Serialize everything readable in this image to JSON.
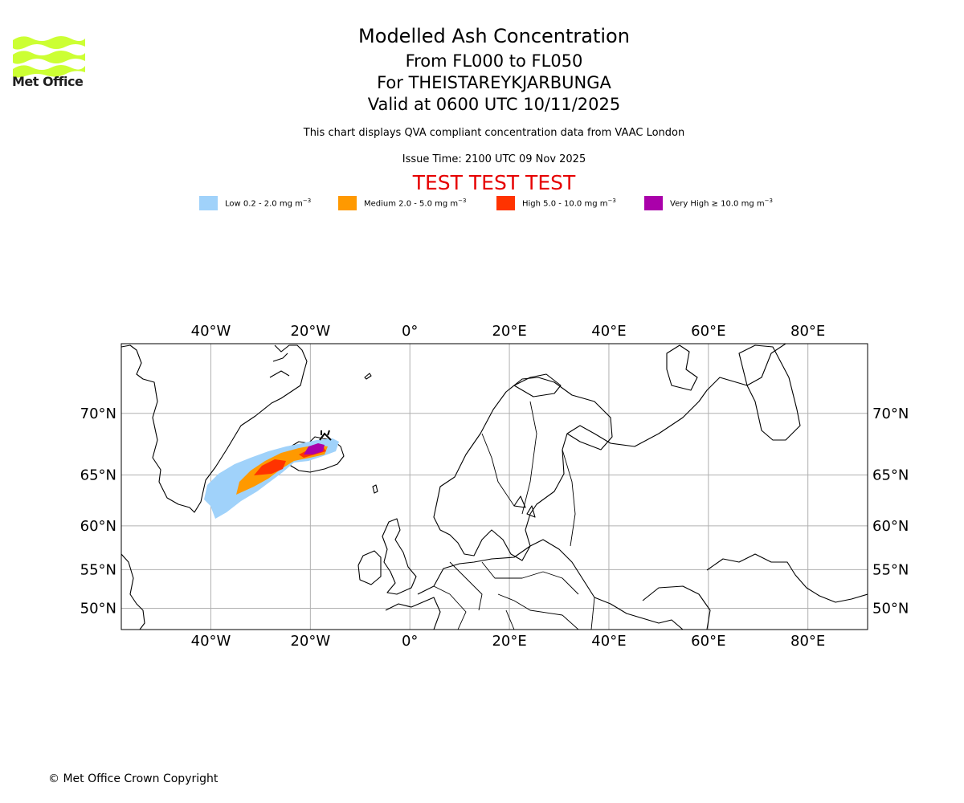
{
  "logo": {
    "text": "Met Office",
    "color": "#ccff33"
  },
  "header": {
    "title": "Modelled Ash Concentration",
    "levels": "From FL000 to FL050",
    "volcano": "For THEISTAREYKJARBUNGA",
    "valid": "Valid at 0600 UTC 10/11/2025",
    "description": "This chart displays QVA compliant concentration data from VAAC London",
    "issue_time": "Issue Time: 2100 UTC 09 Nov 2025",
    "test_banner": "TEST TEST TEST",
    "test_color": "#e60000"
  },
  "legend": [
    {
      "label": "Low 0.2 - 2.0 mg m",
      "sup": "−3",
      "color": "#a0d2fa"
    },
    {
      "label": "Medium 2.0 - 5.0 mg m",
      "sup": "−3",
      "color": "#ff9900"
    },
    {
      "label": "High 5.0 - 10.0 mg m",
      "sup": "−3",
      "color": "#ff3300"
    },
    {
      "label": "Very High  ≥  10.0 mg m",
      "sup": "−3",
      "color": "#aa00aa"
    }
  ],
  "map": {
    "lon_range": [
      -58,
      92
    ],
    "lat_range": [
      47,
      74.5
    ],
    "lon_ticks": [
      {
        "value": -40,
        "label": "40°W"
      },
      {
        "value": -20,
        "label": "20°W"
      },
      {
        "value": 0,
        "label": "0°"
      },
      {
        "value": 20,
        "label": "20°E"
      },
      {
        "value": 40,
        "label": "40°E"
      },
      {
        "value": 60,
        "label": "60°E"
      },
      {
        "value": 80,
        "label": "80°E"
      }
    ],
    "lat_ticks": [
      {
        "value": 70,
        "label": "70°N"
      },
      {
        "value": 65,
        "label": "65°N"
      },
      {
        "value": 60,
        "label": "60°N"
      },
      {
        "value": 55,
        "label": "55°N"
      },
      {
        "value": 50,
        "label": "50°N"
      }
    ],
    "grid": true,
    "volcano_location": {
      "lon": -16.8,
      "lat": 65.9
    }
  },
  "footer": {
    "copyright": "© Met Office Crown Copyright"
  }
}
